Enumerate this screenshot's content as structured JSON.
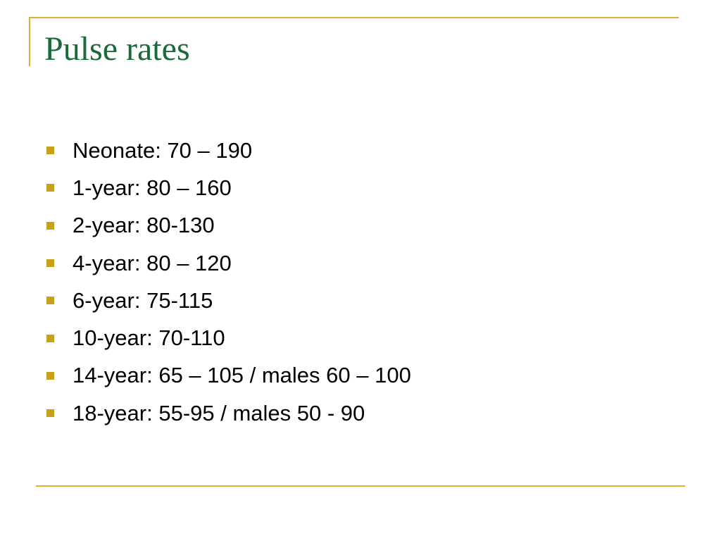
{
  "slide": {
    "title": "Pulse rates",
    "bullets": [
      "Neonate: 70 – 190",
      "1-year: 80 – 160",
      "2-year: 80-130",
      "4-year: 80 – 120",
      "6-year: 75-115",
      "10-year: 70-110",
      "14-year: 65 – 105 / males 60 – 100",
      "18-year: 55-95 / males 50 - 90"
    ]
  },
  "colors": {
    "title": "#1a6b3a",
    "accent_rule": "#e0b030",
    "bullet_mark": "#c9a01a",
    "text": "#000000",
    "background": "#ffffff"
  }
}
